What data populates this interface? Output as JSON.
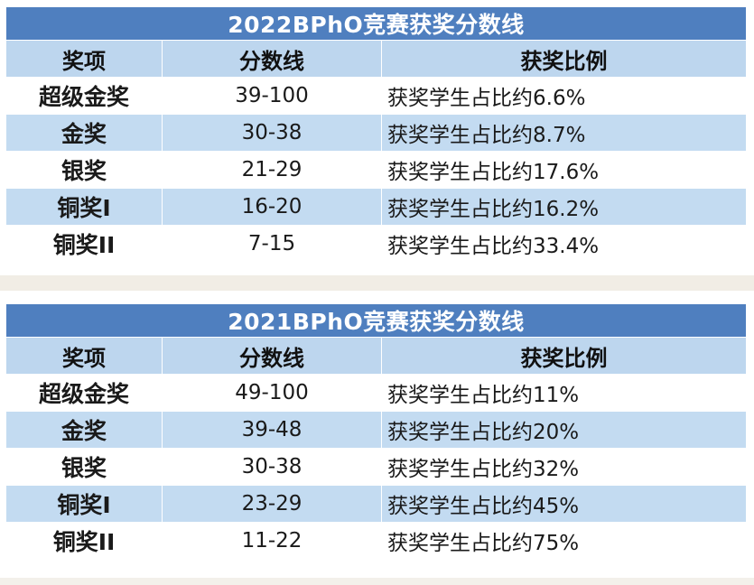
{
  "tables": [
    {
      "title": "2022BPhO竞赛获奖分数线",
      "headers": [
        "奖项",
        "分数线",
        "获奖比例"
      ],
      "rows": [
        {
          "award": "超级金奖",
          "range": "39-100",
          "ratio": "获奖学生占比约6.6%"
        },
        {
          "award": "金奖",
          "range": "30-38",
          "ratio": "获奖学生占比约8.7%"
        },
        {
          "award": "银奖",
          "range": "21-29",
          "ratio": "获奖学生占比约17.6%"
        },
        {
          "award": "铜奖I",
          "range": "16-20",
          "ratio": "获奖学生占比约16.2%"
        },
        {
          "award": "铜奖II",
          "range": "7-15",
          "ratio": "获奖学生占比约33.4%"
        }
      ]
    },
    {
      "title": "2021BPhO竞赛获奖分数线",
      "headers": [
        "奖项",
        "分数线",
        "获奖比例"
      ],
      "rows": [
        {
          "award": "超级金奖",
          "range": "49-100",
          "ratio": "获奖学生占比约11%"
        },
        {
          "award": "金奖",
          "range": "39-48",
          "ratio": "获奖学生占比约20%"
        },
        {
          "award": "银奖",
          "range": "30-38",
          "ratio": "获奖学生占比约32%"
        },
        {
          "award": "铜奖I",
          "range": "23-29",
          "ratio": "获奖学生占比约45%"
        },
        {
          "award": "铜奖II",
          "range": "11-22",
          "ratio": "获奖学生占比约75%"
        }
      ]
    }
  ],
  "colors": {
    "title_bg": "#4f7fbf",
    "header_bg": "#bdd6ee",
    "stripe_bg": "#c3dbf1"
  }
}
